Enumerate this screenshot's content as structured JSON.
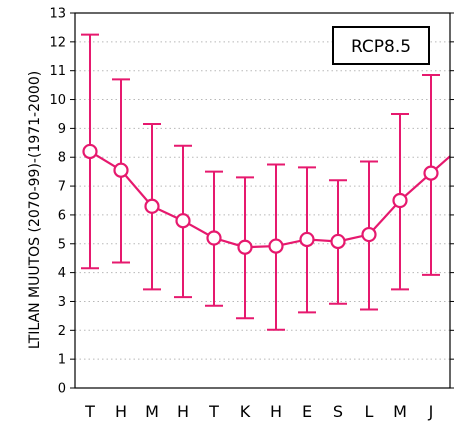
{
  "chart_data": {
    "type": "line",
    "ylabel": "LTILAN MUUTOS (2070-99)-(1971-2000)",
    "legend_box": "RCP8.5",
    "categories": [
      "T",
      "H",
      "M",
      "H",
      "T",
      "K",
      "H",
      "E",
      "S",
      "L",
      "M",
      "J"
    ],
    "ylim": [
      0,
      13
    ],
    "yticks": [
      "0",
      "1",
      "2",
      "3",
      "4",
      "5",
      "6",
      "7",
      "8",
      "9",
      "10",
      "11",
      "12",
      "13"
    ],
    "grid": "horizontal dotted",
    "series": [
      {
        "values": [
          8.2,
          7.55,
          6.3,
          5.8,
          5.2,
          4.88,
          4.92,
          5.15,
          5.08,
          5.32,
          6.5,
          7.45
        ],
        "upper": [
          12.25,
          10.7,
          9.15,
          8.4,
          7.5,
          7.3,
          7.75,
          7.65,
          7.2,
          7.85,
          9.5,
          10.85
        ],
        "lower": [
          4.15,
          4.35,
          3.42,
          3.15,
          2.85,
          2.42,
          2.02,
          2.62,
          2.92,
          2.72,
          3.42,
          3.92
        ]
      }
    ],
    "colors": {
      "series": "#E6196E",
      "axis": "#000000",
      "grid": "#b8b8b8"
    }
  }
}
